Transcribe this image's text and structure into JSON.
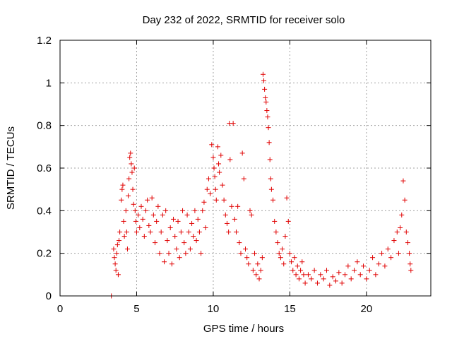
{
  "chart_data": {
    "type": "scatter",
    "title": "Day 232 of 2022, SRMTID for receiver solo",
    "xlabel": "GPS time / hours",
    "ylabel": "SRMTID / TECUs",
    "xlim": [
      0,
      24.2
    ],
    "ylim": [
      0,
      1.2
    ],
    "xticks": [
      0,
      5,
      10,
      15,
      20
    ],
    "xtick_labels": [
      "0",
      "5",
      "10",
      "15",
      "20"
    ],
    "yticks": [
      0,
      0.2,
      0.4,
      0.6,
      0.8,
      1.0,
      1.2
    ],
    "ytick_labels": [
      "0",
      "0.2",
      "0.4",
      "0.6",
      "0.8",
      "1",
      "1.2"
    ],
    "grid": true,
    "marker": "+",
    "color": "#e00000",
    "series": [
      {
        "name": "solo",
        "points": [
          [
            3.35,
            0.0
          ],
          [
            3.5,
            0.22
          ],
          [
            3.55,
            0.18
          ],
          [
            3.6,
            0.15
          ],
          [
            3.65,
            0.12
          ],
          [
            3.7,
            0.2
          ],
          [
            3.75,
            0.24
          ],
          [
            3.8,
            0.1
          ],
          [
            3.85,
            0.26
          ],
          [
            3.9,
            0.3
          ],
          [
            4.0,
            0.45
          ],
          [
            4.05,
            0.5
          ],
          [
            4.1,
            0.52
          ],
          [
            4.15,
            0.35
          ],
          [
            4.2,
            0.28
          ],
          [
            4.3,
            0.4
          ],
          [
            4.35,
            0.3
          ],
          [
            4.4,
            0.22
          ],
          [
            4.45,
            0.47
          ],
          [
            4.5,
            0.55
          ],
          [
            4.55,
            0.65
          ],
          [
            4.6,
            0.67
          ],
          [
            4.65,
            0.62
          ],
          [
            4.7,
            0.58
          ],
          [
            4.75,
            0.5
          ],
          [
            4.8,
            0.43
          ],
          [
            4.85,
            0.6
          ],
          [
            4.9,
            0.4
          ],
          [
            4.95,
            0.35
          ],
          [
            5.0,
            0.3
          ],
          [
            5.1,
            0.38
          ],
          [
            5.2,
            0.32
          ],
          [
            5.3,
            0.42
          ],
          [
            5.4,
            0.36
          ],
          [
            5.5,
            0.28
          ],
          [
            5.6,
            0.4
          ],
          [
            5.7,
            0.45
          ],
          [
            5.8,
            0.33
          ],
          [
            5.9,
            0.3
          ],
          [
            6.0,
            0.46
          ],
          [
            6.1,
            0.38
          ],
          [
            6.2,
            0.25
          ],
          [
            6.3,
            0.35
          ],
          [
            6.4,
            0.42
          ],
          [
            6.5,
            0.2
          ],
          [
            6.6,
            0.3
          ],
          [
            6.7,
            0.38
          ],
          [
            6.8,
            0.16
          ],
          [
            6.9,
            0.4
          ],
          [
            7.0,
            0.26
          ],
          [
            7.1,
            0.2
          ],
          [
            7.2,
            0.32
          ],
          [
            7.3,
            0.15
          ],
          [
            7.4,
            0.36
          ],
          [
            7.5,
            0.28
          ],
          [
            7.6,
            0.22
          ],
          [
            7.7,
            0.35
          ],
          [
            7.8,
            0.18
          ],
          [
            7.9,
            0.3
          ],
          [
            8.0,
            0.4
          ],
          [
            8.1,
            0.25
          ],
          [
            8.2,
            0.2
          ],
          [
            8.3,
            0.38
          ],
          [
            8.4,
            0.3
          ],
          [
            8.5,
            0.22
          ],
          [
            8.6,
            0.34
          ],
          [
            8.7,
            0.28
          ],
          [
            8.8,
            0.4
          ],
          [
            8.9,
            0.26
          ],
          [
            9.0,
            0.36
          ],
          [
            9.1,
            0.3
          ],
          [
            9.2,
            0.2
          ],
          [
            9.3,
            0.4
          ],
          [
            9.4,
            0.44
          ],
          [
            9.5,
            0.32
          ],
          [
            9.6,
            0.5
          ],
          [
            9.7,
            0.55
          ],
          [
            9.8,
            0.48
          ],
          [
            9.9,
            0.71
          ],
          [
            10.0,
            0.65
          ],
          [
            10.05,
            0.6
          ],
          [
            10.1,
            0.56
          ],
          [
            10.15,
            0.5
          ],
          [
            10.2,
            0.45
          ],
          [
            10.3,
            0.7
          ],
          [
            10.35,
            0.62
          ],
          [
            10.4,
            0.58
          ],
          [
            10.5,
            0.66
          ],
          [
            10.6,
            0.52
          ],
          [
            10.7,
            0.45
          ],
          [
            10.8,
            0.38
          ],
          [
            10.9,
            0.34
          ],
          [
            11.0,
            0.3
          ],
          [
            11.05,
            0.81
          ],
          [
            11.1,
            0.64
          ],
          [
            11.2,
            0.42
          ],
          [
            11.3,
            0.81
          ],
          [
            11.4,
            0.36
          ],
          [
            11.5,
            0.3
          ],
          [
            11.6,
            0.42
          ],
          [
            11.7,
            0.25
          ],
          [
            11.8,
            0.2
          ],
          [
            11.9,
            0.67
          ],
          [
            12.0,
            0.55
          ],
          [
            12.1,
            0.22
          ],
          [
            12.2,
            0.18
          ],
          [
            12.3,
            0.15
          ],
          [
            12.4,
            0.4
          ],
          [
            12.5,
            0.38
          ],
          [
            12.6,
            0.12
          ],
          [
            12.7,
            0.2
          ],
          [
            12.8,
            0.1
          ],
          [
            12.9,
            0.15
          ],
          [
            13.0,
            0.08
          ],
          [
            13.1,
            0.12
          ],
          [
            13.2,
            0.18
          ],
          [
            13.25,
            1.04
          ],
          [
            13.3,
            1.01
          ],
          [
            13.35,
            0.97
          ],
          [
            13.4,
            0.93
          ],
          [
            13.45,
            0.91
          ],
          [
            13.5,
            0.87
          ],
          [
            13.55,
            0.84
          ],
          [
            13.6,
            0.79
          ],
          [
            13.65,
            0.72
          ],
          [
            13.7,
            0.64
          ],
          [
            13.75,
            0.55
          ],
          [
            13.8,
            0.5
          ],
          [
            13.9,
            0.45
          ],
          [
            14.0,
            0.35
          ],
          [
            14.1,
            0.3
          ],
          [
            14.2,
            0.25
          ],
          [
            14.3,
            0.2
          ],
          [
            14.4,
            0.18
          ],
          [
            14.5,
            0.22
          ],
          [
            14.6,
            0.15
          ],
          [
            14.7,
            0.28
          ],
          [
            14.8,
            0.46
          ],
          [
            14.9,
            0.35
          ],
          [
            15.0,
            0.2
          ],
          [
            15.1,
            0.16
          ],
          [
            15.2,
            0.12
          ],
          [
            15.3,
            0.18
          ],
          [
            15.4,
            0.1
          ],
          [
            15.5,
            0.14
          ],
          [
            15.6,
            0.08
          ],
          [
            15.7,
            0.12
          ],
          [
            15.8,
            0.16
          ],
          [
            15.9,
            0.1
          ],
          [
            16.0,
            0.06
          ],
          [
            16.2,
            0.1
          ],
          [
            16.4,
            0.08
          ],
          [
            16.6,
            0.12
          ],
          [
            16.8,
            0.06
          ],
          [
            17.0,
            0.1
          ],
          [
            17.2,
            0.08
          ],
          [
            17.4,
            0.12
          ],
          [
            17.6,
            0.05
          ],
          [
            17.8,
            0.09
          ],
          [
            18.0,
            0.07
          ],
          [
            18.2,
            0.11
          ],
          [
            18.4,
            0.06
          ],
          [
            18.6,
            0.1
          ],
          [
            18.8,
            0.14
          ],
          [
            19.0,
            0.08
          ],
          [
            19.2,
            0.12
          ],
          [
            19.4,
            0.16
          ],
          [
            19.6,
            0.1
          ],
          [
            19.8,
            0.14
          ],
          [
            20.0,
            0.08
          ],
          [
            20.2,
            0.12
          ],
          [
            20.4,
            0.18
          ],
          [
            20.6,
            0.1
          ],
          [
            20.8,
            0.15
          ],
          [
            21.0,
            0.2
          ],
          [
            21.2,
            0.14
          ],
          [
            21.4,
            0.22
          ],
          [
            21.6,
            0.18
          ],
          [
            21.8,
            0.26
          ],
          [
            22.0,
            0.3
          ],
          [
            22.1,
            0.2
          ],
          [
            22.2,
            0.32
          ],
          [
            22.3,
            0.38
          ],
          [
            22.4,
            0.54
          ],
          [
            22.5,
            0.45
          ],
          [
            22.6,
            0.3
          ],
          [
            22.7,
            0.25
          ],
          [
            22.8,
            0.2
          ],
          [
            22.85,
            0.15
          ],
          [
            22.9,
            0.12
          ]
        ]
      }
    ]
  }
}
